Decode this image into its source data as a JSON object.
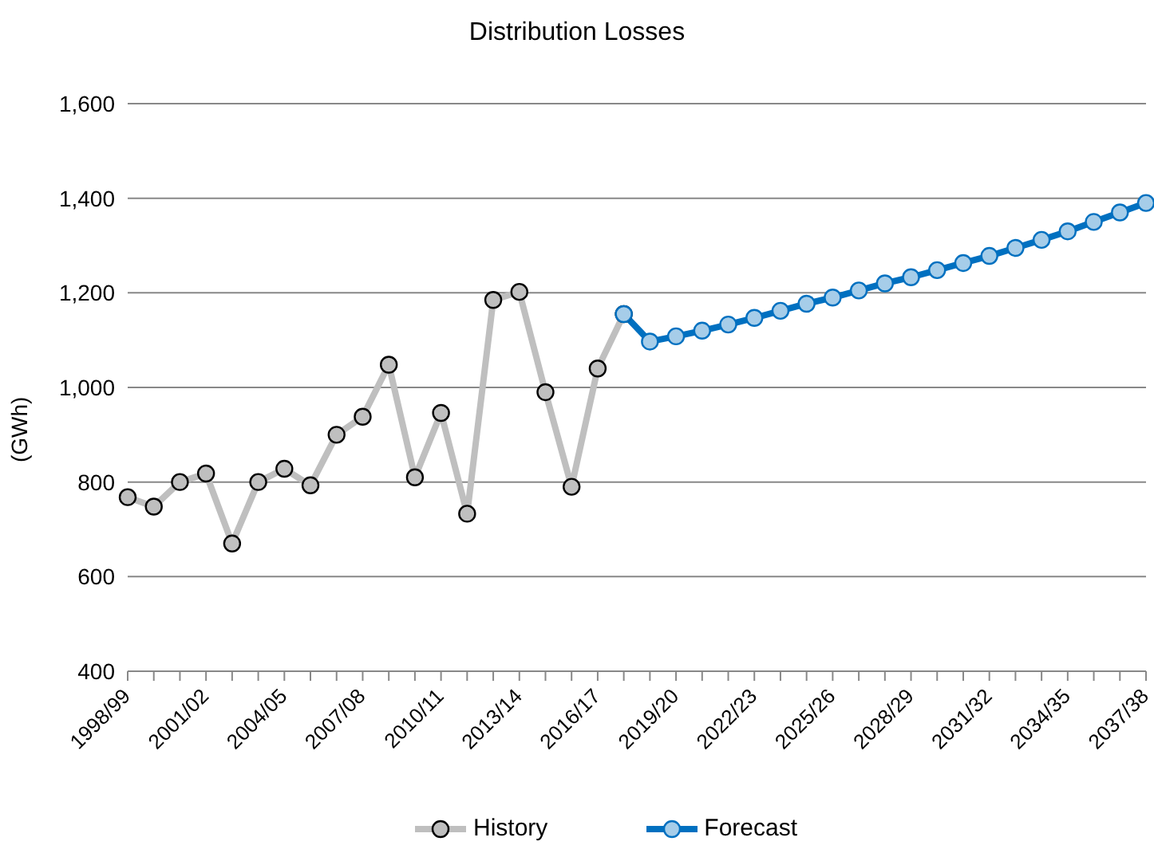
{
  "chart_data": {
    "type": "line",
    "title": "Distribution Losses",
    "ylabel": "(GWh)",
    "categories": [
      "1998/99",
      null,
      null,
      "2001/02",
      null,
      null,
      "2004/05",
      null,
      null,
      "2007/08",
      null,
      null,
      "2010/11",
      null,
      null,
      "2013/14",
      null,
      null,
      "2016/17",
      null,
      null,
      "2019/20",
      null,
      null,
      "2022/23",
      null,
      null,
      "2025/26",
      null,
      null,
      "2028/29",
      null,
      null,
      "2031/32",
      null,
      null,
      "2034/35",
      null,
      null,
      "2037/38"
    ],
    "series": [
      {
        "name": "History",
        "color": "#bfbfbf",
        "values": [
          768,
          748,
          800,
          818,
          670,
          800,
          828,
          793,
          900,
          938,
          1048,
          810,
          946,
          733,
          1185,
          1202,
          990,
          790,
          1040,
          1155,
          null,
          null,
          null,
          null,
          null,
          null,
          null,
          null,
          null,
          null,
          null,
          null,
          null,
          null,
          null,
          null,
          null,
          null,
          null,
          null
        ]
      },
      {
        "name": "Forecast",
        "color": "#0070c0",
        "values": [
          null,
          null,
          null,
          null,
          null,
          null,
          null,
          null,
          null,
          null,
          null,
          null,
          null,
          null,
          null,
          null,
          null,
          null,
          null,
          1155,
          1097,
          1108,
          1120,
          1133,
          1147,
          1162,
          1177,
          1190,
          1205,
          1220,
          1233,
          1248,
          1263,
          1278,
          1295,
          1312,
          1330,
          1350,
          1370,
          1390
        ]
      }
    ],
    "ylim": [
      400,
      1600
    ],
    "yticks": [
      400,
      600,
      800,
      {
        "value": 1000,
        "label": "1,000"
      },
      {
        "value": 1200,
        "label": "1,200"
      },
      {
        "value": 1400,
        "label": "1,400"
      },
      {
        "value": 1600,
        "label": "1,600"
      }
    ],
    "grid": "y",
    "legend": "bottom",
    "marker": "circle",
    "line_style": "solid"
  }
}
